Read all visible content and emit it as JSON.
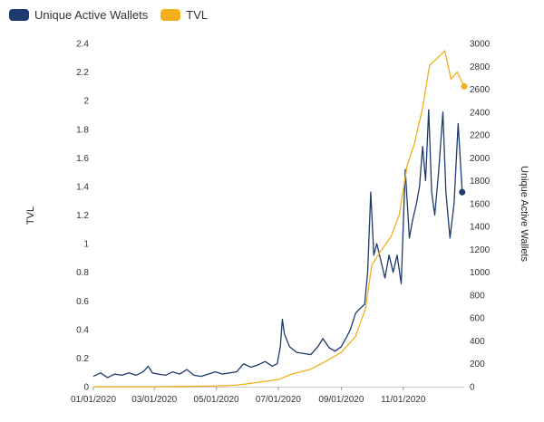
{
  "chart_data": {
    "type": "line",
    "title": "",
    "grid": false,
    "legend_position": "top-left",
    "y_left": {
      "label": "TVL",
      "range": [
        0,
        2.4
      ],
      "ticks": [
        "0",
        "0.2",
        "0.4",
        "0.6",
        "0.8",
        "1",
        "1.2",
        "1.4",
        "1.6",
        "1.8",
        "2",
        "2.2",
        "2.4"
      ]
    },
    "y_right": {
      "label": "Unique Active Wallets",
      "range": [
        0,
        3000
      ],
      "ticks": [
        "0",
        "200",
        "400",
        "600",
        "800",
        "1000",
        "1200",
        "1400",
        "1600",
        "1800",
        "2000",
        "2200",
        "2400",
        "2600",
        "2800",
        "3000"
      ]
    },
    "x_range": [
      "2020-01-01",
      "2020-12-31"
    ],
    "x_ticks": [
      {
        "date": "2020-01-01",
        "label": "01/01/2020"
      },
      {
        "date": "2020-03-01",
        "label": "03/01/2020"
      },
      {
        "date": "2020-05-01",
        "label": "05/01/2020"
      },
      {
        "date": "2020-07-01",
        "label": "07/01/2020"
      },
      {
        "date": "2020-09-01",
        "label": "09/01/2020"
      },
      {
        "date": "2020-11-01",
        "label": "11/01/2020"
      }
    ],
    "series": [
      {
        "name": "Unique Active Wallets",
        "axis": "right",
        "color": "#1f3a6e",
        "points": [
          [
            "2020-01-01",
            90
          ],
          [
            "2020-01-08",
            120
          ],
          [
            "2020-01-15",
            80
          ],
          [
            "2020-01-22",
            110
          ],
          [
            "2020-01-29",
            100
          ],
          [
            "2020-02-05",
            120
          ],
          [
            "2020-02-12",
            100
          ],
          [
            "2020-02-19",
            130
          ],
          [
            "2020-02-24",
            180
          ],
          [
            "2020-02-28",
            120
          ],
          [
            "2020-03-05",
            110
          ],
          [
            "2020-03-12",
            100
          ],
          [
            "2020-03-19",
            130
          ],
          [
            "2020-03-26",
            110
          ],
          [
            "2020-04-02",
            150
          ],
          [
            "2020-04-09",
            100
          ],
          [
            "2020-04-16",
            90
          ],
          [
            "2020-04-23",
            110
          ],
          [
            "2020-04-30",
            130
          ],
          [
            "2020-05-07",
            110
          ],
          [
            "2020-05-14",
            120
          ],
          [
            "2020-05-21",
            130
          ],
          [
            "2020-05-28",
            200
          ],
          [
            "2020-06-04",
            170
          ],
          [
            "2020-06-11",
            190
          ],
          [
            "2020-06-18",
            220
          ],
          [
            "2020-06-25",
            180
          ],
          [
            "2020-06-30",
            200
          ],
          [
            "2020-07-03",
            350
          ],
          [
            "2020-07-05",
            590
          ],
          [
            "2020-07-07",
            460
          ],
          [
            "2020-07-12",
            350
          ],
          [
            "2020-07-19",
            300
          ],
          [
            "2020-07-26",
            290
          ],
          [
            "2020-08-02",
            280
          ],
          [
            "2020-08-09",
            350
          ],
          [
            "2020-08-14",
            420
          ],
          [
            "2020-08-20",
            340
          ],
          [
            "2020-08-26",
            310
          ],
          [
            "2020-09-01",
            350
          ],
          [
            "2020-09-06",
            430
          ],
          [
            "2020-09-10",
            500
          ],
          [
            "2020-09-15",
            640
          ],
          [
            "2020-09-19",
            680
          ],
          [
            "2020-09-24",
            720
          ],
          [
            "2020-09-27",
            1000
          ],
          [
            "2020-09-30",
            1700
          ],
          [
            "2020-10-03",
            1150
          ],
          [
            "2020-10-06",
            1250
          ],
          [
            "2020-10-10",
            1100
          ],
          [
            "2020-10-14",
            950
          ],
          [
            "2020-10-18",
            1150
          ],
          [
            "2020-10-22",
            1000
          ],
          [
            "2020-10-26",
            1150
          ],
          [
            "2020-10-30",
            900
          ],
          [
            "2020-11-03",
            1900
          ],
          [
            "2020-11-07",
            1300
          ],
          [
            "2020-11-10",
            1450
          ],
          [
            "2020-11-14",
            1600
          ],
          [
            "2020-11-17",
            1750
          ],
          [
            "2020-11-20",
            2100
          ],
          [
            "2020-11-23",
            1800
          ],
          [
            "2020-11-26",
            2420
          ],
          [
            "2020-11-29",
            1700
          ],
          [
            "2020-12-02",
            1500
          ],
          [
            "2020-12-06",
            1900
          ],
          [
            "2020-12-10",
            2400
          ],
          [
            "2020-12-13",
            1700
          ],
          [
            "2020-12-17",
            1300
          ],
          [
            "2020-12-21",
            1600
          ],
          [
            "2020-12-25",
            2300
          ],
          [
            "2020-12-29",
            1700
          ]
        ]
      },
      {
        "name": "TVL",
        "axis": "left",
        "color": "#f2b01e",
        "points": [
          [
            "2020-01-01",
            0.0
          ],
          [
            "2020-02-01",
            0.0
          ],
          [
            "2020-03-01",
            0.0
          ],
          [
            "2020-04-01",
            0.002
          ],
          [
            "2020-05-01",
            0.005
          ],
          [
            "2020-05-20",
            0.01
          ],
          [
            "2020-06-01",
            0.02
          ],
          [
            "2020-06-15",
            0.035
          ],
          [
            "2020-07-01",
            0.05
          ],
          [
            "2020-07-15",
            0.09
          ],
          [
            "2020-08-01",
            0.12
          ],
          [
            "2020-08-15",
            0.17
          ],
          [
            "2020-09-01",
            0.24
          ],
          [
            "2020-09-15",
            0.35
          ],
          [
            "2020-09-25",
            0.55
          ],
          [
            "2020-10-01",
            0.85
          ],
          [
            "2020-10-10",
            0.95
          ],
          [
            "2020-10-20",
            1.05
          ],
          [
            "2020-10-28",
            1.2
          ],
          [
            "2020-11-05",
            1.55
          ],
          [
            "2020-11-12",
            1.7
          ],
          [
            "2020-11-20",
            1.95
          ],
          [
            "2020-11-27",
            2.25
          ],
          [
            "2020-12-05",
            2.3
          ],
          [
            "2020-12-12",
            2.35
          ],
          [
            "2020-12-18",
            2.15
          ],
          [
            "2020-12-24",
            2.2
          ],
          [
            "2020-12-31",
            2.1
          ]
        ]
      }
    ]
  },
  "legend": {
    "items": [
      {
        "label": "Unique Active Wallets",
        "color": "#1f3a6e"
      },
      {
        "label": "TVL",
        "color": "#f2b01e"
      }
    ]
  }
}
